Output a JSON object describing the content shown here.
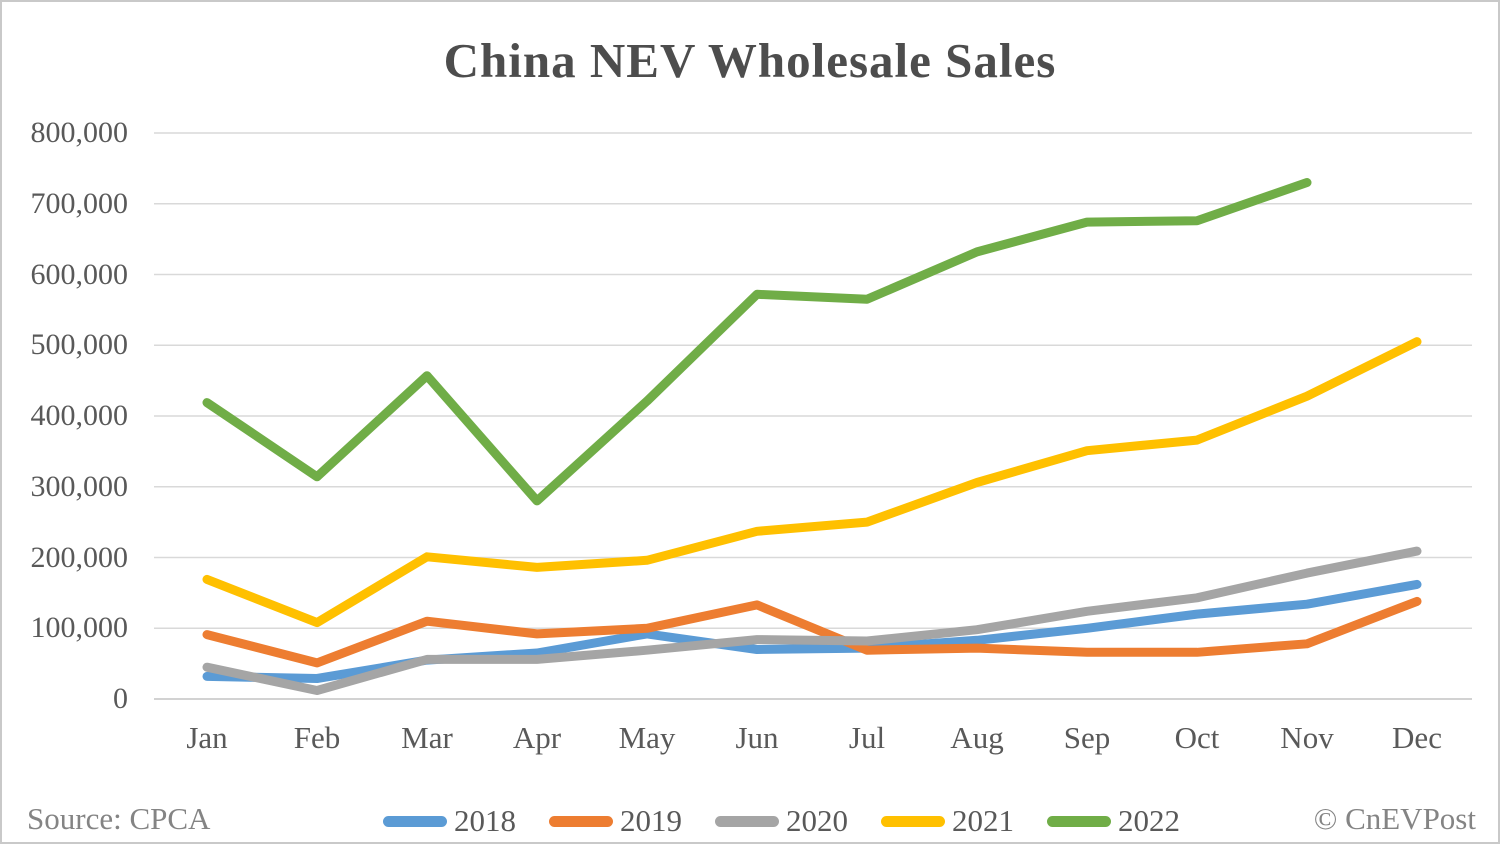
{
  "chart_data": {
    "type": "line",
    "title": "China NEV Wholesale Sales",
    "categories": [
      "Jan",
      "Feb",
      "Mar",
      "Apr",
      "May",
      "Jun",
      "Jul",
      "Aug",
      "Sep",
      "Oct",
      "Nov",
      "Dec"
    ],
    "series": [
      {
        "name": "2018",
        "color": "#5B9BD5",
        "values": [
          32000,
          29000,
          55000,
          65000,
          92000,
          70000,
          72000,
          83000,
          100000,
          120000,
          134000,
          162000
        ]
      },
      {
        "name": "2019",
        "color": "#ED7D31",
        "values": [
          91000,
          51000,
          110000,
          92000,
          100000,
          133000,
          69000,
          72000,
          66000,
          66000,
          78000,
          138000
        ]
      },
      {
        "name": "2020",
        "color": "#A5A5A5",
        "values": [
          45000,
          12000,
          56000,
          56000,
          69000,
          84000,
          82000,
          98000,
          124000,
          143000,
          178000,
          209000
        ]
      },
      {
        "name": "2021",
        "color": "#FFC000",
        "values": [
          169000,
          108000,
          201000,
          186000,
          196000,
          237000,
          250000,
          306000,
          351000,
          366000,
          428000,
          505000
        ]
      },
      {
        "name": "2022",
        "color": "#70AD47",
        "values": [
          419000,
          314000,
          457000,
          280000,
          421000,
          572000,
          565000,
          632000,
          674000,
          676000,
          730000,
          null
        ]
      }
    ],
    "ylim": [
      0,
      800000
    ],
    "ytick_step": 100000,
    "ytick_labels": [
      "0",
      "100,000",
      "200,000",
      "300,000",
      "400,000",
      "500,000",
      "600,000",
      "700,000",
      "800,000"
    ],
    "xlabel": "",
    "ylabel": "",
    "grid": true,
    "legend_position": "bottom"
  },
  "footer": {
    "source": "Source: CPCA",
    "watermark": "© CnEVPost"
  },
  "colors": {
    "gridline": "#D9D9D9",
    "baseline": "#C4C4C4",
    "title_text": "#4d4d4d",
    "axis_text": "#595959",
    "footer_text": "#848484"
  }
}
